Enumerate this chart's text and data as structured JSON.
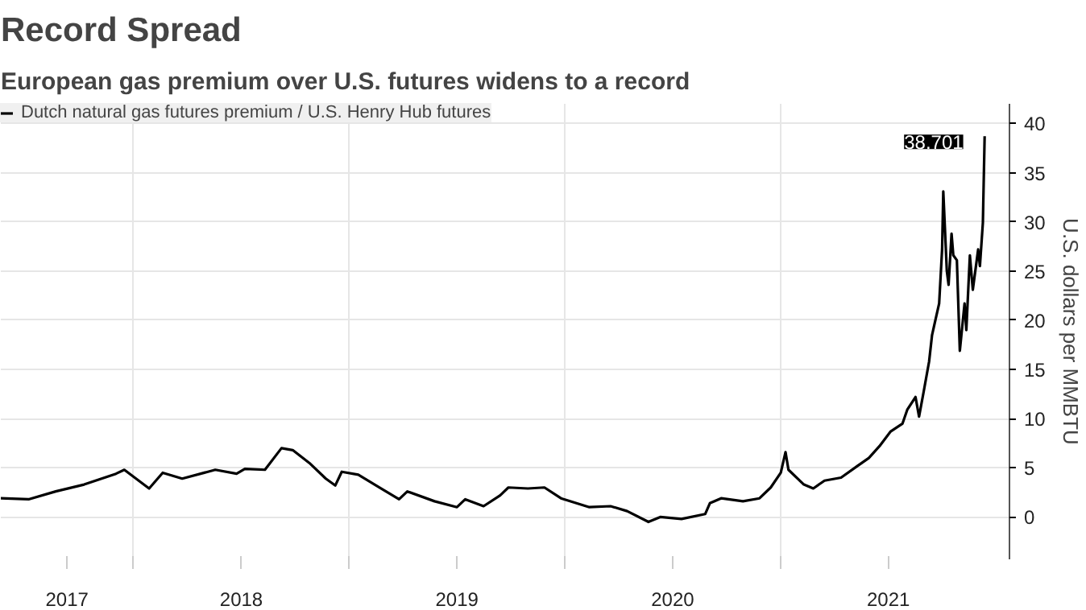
{
  "chart_data": {
    "type": "line",
    "title": "Record Spread",
    "subtitle": "European gas premium over U.S. futures widens to a record",
    "ylabel": "U.S. dollars per MMBTU",
    "x": [
      "2017-05-22",
      "2017-07-08",
      "2017-08-23",
      "2017-10-10",
      "2017-12-03",
      "2017-12-17",
      "2018-01-28",
      "2018-02-20",
      "2018-03-25",
      "2018-05-20",
      "2018-06-25",
      "2018-07-09",
      "2018-08-12",
      "2018-09-09",
      "2018-09-28",
      "2018-10-26",
      "2018-11-23",
      "2018-12-09",
      "2018-12-20",
      "2019-01-17",
      "2019-02-22",
      "2019-03-27",
      "2019-04-10",
      "2019-05-26",
      "2019-07-03",
      "2019-07-17",
      "2019-08-17",
      "2019-09-14",
      "2019-09-28",
      "2019-10-31",
      "2019-11-28",
      "2019-12-26",
      "2020-02-12",
      "2020-03-19",
      "2020-04-16",
      "2020-05-22",
      "2020-06-11",
      "2020-07-17",
      "2020-08-26",
      "2020-09-03",
      "2020-09-22",
      "2020-10-29",
      "2020-11-26",
      "2020-12-15",
      "2021-01-01",
      "2021-01-09",
      "2021-01-14",
      "2021-02-09",
      "2021-02-25",
      "2021-03-16",
      "2021-04-13",
      "2021-05-11",
      "2021-05-30",
      "2021-06-17",
      "2021-07-06",
      "2021-07-26",
      "2021-08-03",
      "2021-08-17",
      "2021-08-23",
      "2021-08-31",
      "2021-09-09",
      "2021-09-14",
      "2021-09-20",
      "2021-09-26",
      "2021-10-01",
      "2021-10-03",
      "2021-10-09",
      "2021-10-12",
      "2021-10-17",
      "2021-10-20",
      "2021-10-26",
      "2021-10-31",
      "2021-11-08",
      "2021-11-11",
      "2021-11-17",
      "2021-11-22",
      "2021-12-01",
      "2021-12-04",
      "2021-12-09",
      "2021-12-12"
    ],
    "series": [
      {
        "name": "Dutch natural gas futures premium / U.S. Henry Hub futures",
        "color": "#000000",
        "values": [
          1.9,
          1.8,
          2.6,
          3.3,
          4.4,
          4.8,
          2.9,
          4.5,
          3.9,
          4.8,
          4.4,
          4.9,
          4.8,
          7.0,
          6.8,
          5.5,
          3.9,
          3.2,
          4.6,
          4.3,
          3.0,
          1.8,
          2.6,
          1.6,
          1.0,
          1.8,
          1.1,
          2.2,
          3.0,
          2.9,
          3.0,
          1.9,
          1.0,
          1.1,
          0.6,
          -0.5,
          0.0,
          -0.2,
          0.3,
          1.4,
          1.9,
          1.6,
          1.9,
          3.0,
          4.5,
          6.6,
          4.8,
          3.3,
          2.9,
          3.7,
          4.0,
          5.2,
          6.0,
          7.2,
          8.7,
          9.5,
          10.9,
          12.2,
          10.2,
          12.8,
          15.8,
          18.5,
          20.1,
          21.7,
          27.2,
          33.1,
          25.0,
          23.6,
          28.8,
          26.6,
          26.1,
          16.9,
          21.7,
          19.0,
          26.6,
          23.1,
          27.2,
          25.5,
          29.9,
          38.701
        ]
      }
    ],
    "xlim": [
      "2017-05-22",
      "2022-01-23"
    ],
    "xticks": [
      {
        "value": "2017-09-11",
        "label": "2017"
      },
      {
        "value": "2018-01-01",
        "label": null
      },
      {
        "value": "2018-07-03",
        "label": "2018"
      },
      {
        "value": "2019-01-01",
        "label": null
      },
      {
        "value": "2019-07-03",
        "label": "2019"
      },
      {
        "value": "2020-01-01",
        "label": null
      },
      {
        "value": "2020-07-02",
        "label": "2020"
      },
      {
        "value": "2021-01-01",
        "label": null
      },
      {
        "value": "2021-07-02",
        "label": "2021"
      }
    ],
    "ylim": [
      -4.3,
      42
    ],
    "yticks": [
      0,
      5,
      10,
      15,
      20,
      25,
      30,
      35,
      40
    ],
    "annotations": [
      {
        "text": "38.701",
        "x": "2021-12-12",
        "y": 38.701
      }
    ],
    "grid": true,
    "legend": "top left",
    "line_style": "solid",
    "marker": "none"
  }
}
